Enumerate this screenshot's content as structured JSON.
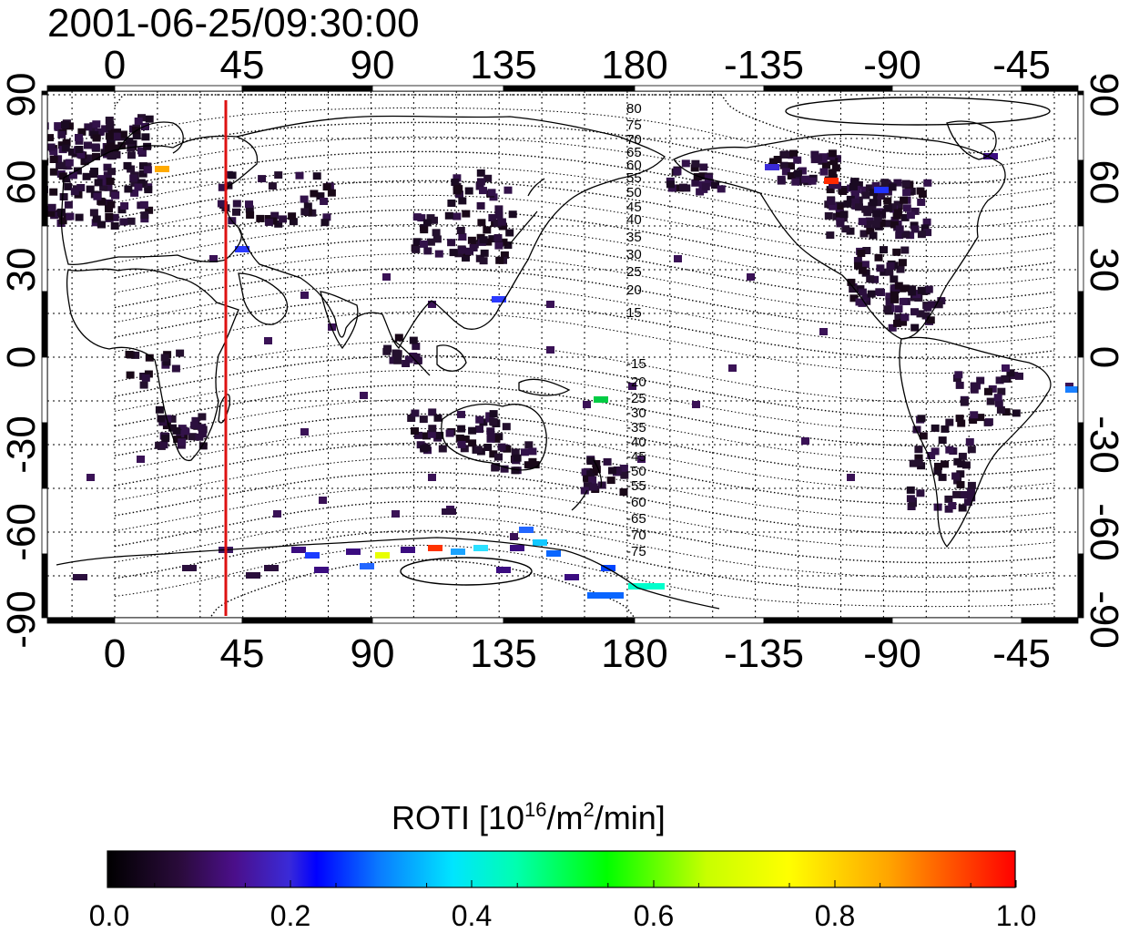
{
  "title": "2001-06-25/09:30:00",
  "map": {
    "x_ticks_top": [
      "0",
      "45",
      "90",
      "135",
      "180",
      "-135",
      "-90",
      "-45"
    ],
    "x_ticks_bottom": [
      "0",
      "45",
      "90",
      "135",
      "180",
      "-135",
      "-90",
      "-45"
    ],
    "y_ticks_left": [
      "90",
      "60",
      "30",
      "0",
      "-30",
      "-60",
      "-90"
    ],
    "y_ticks_right": [
      "90",
      "60",
      "30",
      "0",
      "-30",
      "-60",
      "-90"
    ],
    "marker_longitude": 39,
    "marker_color": "#dd1111",
    "north_mlat_labels": [
      "80",
      "75",
      "70",
      "65",
      "60",
      "55",
      "50",
      "45",
      "40",
      "35",
      "30",
      "25",
      "20",
      "15"
    ],
    "south_mlat_labels": [
      "-15",
      "-20",
      "-25",
      "-30",
      "-35",
      "-40",
      "-45",
      "-50",
      "-55",
      "-60",
      "-65",
      "-70",
      "-75"
    ]
  },
  "colorbar": {
    "label_main": "ROTI  [10",
    "label_sup1": "16",
    "label_mid": "/m",
    "label_sup2": "2",
    "label_end": "/min]",
    "ticks": [
      "0.0",
      "0.2",
      "0.4",
      "0.6",
      "0.8",
      "1.0"
    ],
    "colors": [
      "#000000",
      "#2a0b3b",
      "#4b0f8a",
      "#3a2ad8",
      "#0000ff",
      "#0a7cff",
      "#00e5ff",
      "#00ffb0",
      "#00ff00",
      "#c8ff00",
      "#ffff00",
      "#ffa500",
      "#ff0000"
    ]
  }
}
